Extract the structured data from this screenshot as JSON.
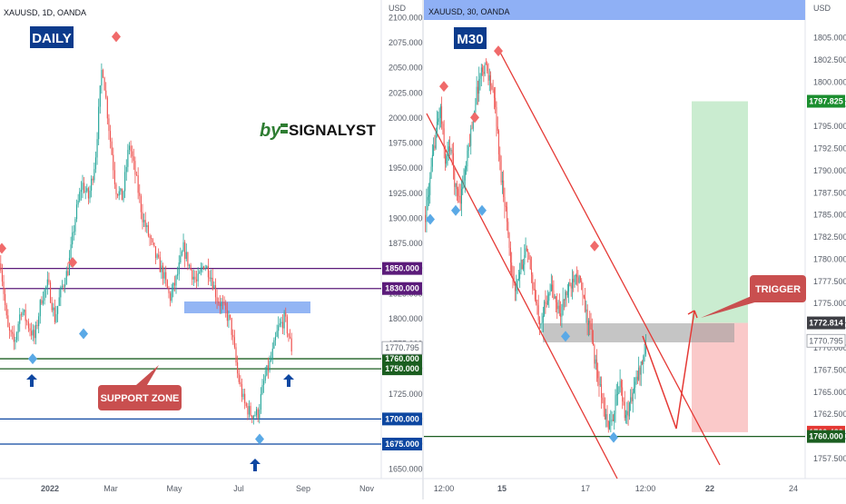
{
  "colors": {
    "up": "#26a69a",
    "down": "#ef5350",
    "purple": "#5b1b7a",
    "green": "#1b5e20",
    "blue": "#0d47a1",
    "tag_navy": "#0c3b8c",
    "red_callout": "#c94f4f",
    "gray_tag": "#3e3f45"
  },
  "left_chart": {
    "symbol": "XAUUSD, 1D, OANDA",
    "badge": "DAILY",
    "brand_prefix": "by",
    "brand_name": "SIGNALYST",
    "currency": "USD",
    "support_label": "SUPPORT ZONE",
    "price_ticks": [
      "2100.000",
      "2075.000",
      "2050.000",
      "2025.000",
      "2000.000",
      "1975.000",
      "1950.000",
      "1925.000",
      "1900.000",
      "1875.000",
      "1850.000",
      "1825.000",
      "1800.000",
      "1775.000",
      "1750.000",
      "1725.000",
      "1700.000",
      "1675.000",
      "1650.000"
    ],
    "time_ticks": [
      "2022",
      "Mar",
      "May",
      "Jul",
      "Sep",
      "Nov"
    ],
    "levels": [
      {
        "price": "1850.000",
        "color": "#5b1b7a"
      },
      {
        "price": "1830.000",
        "color": "#5b1b7a"
      },
      {
        "price": "1760.000",
        "color": "#1b5e20"
      },
      {
        "price": "1750.000",
        "color": "#1b5e20"
      },
      {
        "price": "1700.000",
        "color": "#0d47a1"
      },
      {
        "price": "1675.000",
        "color": "#0d47a1"
      }
    ],
    "current_price": "1770.795"
  },
  "right_chart": {
    "symbol": "XAUUSD, 30, OANDA",
    "badge": "M30",
    "currency": "USD",
    "trigger_label": "TRIGGER",
    "price_ticks": [
      "1805.000",
      "1802.500",
      "1800.000",
      "1797.500",
      "1795.000",
      "1792.500",
      "1790.000",
      "1787.500",
      "1785.000",
      "1782.500",
      "1780.000",
      "1777.500",
      "1775.000",
      "1772.500",
      "1770.000",
      "1767.500",
      "1765.000",
      "1762.500",
      "1760.000",
      "1757.500"
    ],
    "time_ticks": [
      "12:00",
      "15",
      "17",
      "12:00",
      "22",
      "24"
    ],
    "tags": [
      {
        "price": "1797.825",
        "color": "#1b8e2f"
      },
      {
        "price": "1772.814",
        "color": "#3e3f45"
      },
      {
        "price": "1770.795",
        "color": "#ffffff"
      },
      {
        "price": "1760.482",
        "color": "#e53935"
      },
      {
        "price": "1760.000",
        "color": "#1b5e20"
      }
    ]
  },
  "chart_data": [
    {
      "type": "candlestick",
      "title": "XAUUSD, 1D, OANDA",
      "ylabel": "USD",
      "ylim": [
        1640,
        2108
      ],
      "x_ticks": [
        "2022",
        "Mar",
        "May",
        "Jul",
        "Sep",
        "Nov"
      ],
      "close_path": [
        1855,
        1790,
        1775,
        1810,
        1795,
        1780,
        1820,
        1835,
        1800,
        1830,
        1850,
        1900,
        1935,
        1920,
        1960,
        2055,
        1990,
        1930,
        1920,
        1975,
        1940,
        1900,
        1880,
        1860,
        1845,
        1820,
        1840,
        1870,
        1850,
        1835,
        1855,
        1845,
        1820,
        1810,
        1795,
        1745,
        1715,
        1705,
        1705,
        1740,
        1760,
        1790,
        1800,
        1770
      ],
      "levels": [
        1850,
        1830,
        1760,
        1750,
        1700,
        1675
      ],
      "current_price": 1770.795
    },
    {
      "type": "candlestick",
      "title": "XAUUSD, 30, OANDA",
      "ylabel": "USD",
      "ylim": [
        1756,
        1807
      ],
      "x_ticks": [
        "12:00",
        "15",
        "17",
        "12:00",
        "22",
        "24"
      ],
      "close_path": [
        1785,
        1789,
        1794,
        1797,
        1791,
        1793,
        1788,
        1787,
        1790,
        1794,
        1798,
        1801,
        1802,
        1800,
        1797,
        1790,
        1786,
        1780,
        1776,
        1779,
        1781,
        1779,
        1775,
        1773,
        1775,
        1777,
        1775,
        1774,
        1776,
        1777,
        1779,
        1777,
        1774,
        1772,
        1768,
        1765,
        1762,
        1761,
        1764,
        1766,
        1762,
        1764,
        1766,
        1768,
        1770
      ],
      "levels": [
        1760.0
      ],
      "trade_setup": {
        "target": 1797.825,
        "entry": 1772.814,
        "stop": 1760.482
      },
      "current_price": 1770.795
    }
  ]
}
